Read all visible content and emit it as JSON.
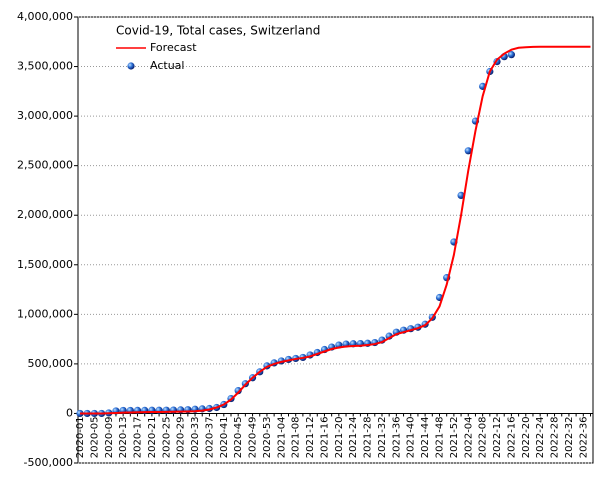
{
  "chart_data": {
    "type": "line",
    "title": "Covid-19, Total cases, Switzerland",
    "categories": [
      "2020-01",
      null,
      "2020-05",
      null,
      "2020-09",
      null,
      "2020-13",
      null,
      "2020-17",
      null,
      "2020-21",
      null,
      "2020-25",
      null,
      "2020-29",
      null,
      "2020-33",
      null,
      "2020-37",
      null,
      "2020-41",
      null,
      "2020-45",
      null,
      "2020-49",
      null,
      "2020-53",
      null,
      "2021-04",
      null,
      "2021-08",
      null,
      "2021-12",
      null,
      "2021-16",
      null,
      "2021-20",
      null,
      "2021-24",
      null,
      "2021-28",
      null,
      "2021-32",
      null,
      "2021-36",
      null,
      "2021-40",
      null,
      "2021-44",
      null,
      "2021-48",
      null,
      "2021-52",
      null,
      "2022-04",
      null,
      "2022-08",
      null,
      "2022-12",
      null,
      "2022-16",
      null,
      "2022-20",
      null,
      "2022-24",
      null,
      "2022-28",
      null,
      "2022-32",
      null,
      "2022-36",
      null
    ],
    "series": [
      {
        "name": "Forecast",
        "style": "line",
        "color": "#ff0000",
        "values": [
          0,
          0,
          0,
          0,
          2000,
          5000,
          8000,
          10000,
          12000,
          13000,
          14000,
          15000,
          16000,
          17000,
          18000,
          20000,
          22000,
          28000,
          40000,
          60000,
          90000,
          140000,
          210000,
          290000,
          360000,
          420000,
          470000,
          500000,
          520000,
          535000,
          550000,
          560000,
          575000,
          600000,
          625000,
          650000,
          665000,
          675000,
          680000,
          683000,
          690000,
          700000,
          720000,
          760000,
          800000,
          820000,
          840000,
          860000,
          890000,
          960000,
          1080000,
          1300000,
          1600000,
          2000000,
          2450000,
          2850000,
          3200000,
          3450000,
          3570000,
          3630000,
          3670000,
          3690000,
          3695000,
          3698000,
          3700000,
          3700000,
          3700000,
          3700000,
          3700000,
          3700000,
          3700000,
          3700000
        ]
      },
      {
        "name": "Actual",
        "style": "points",
        "color": "#1f5fd0",
        "values": [
          0,
          0,
          0,
          0,
          5000,
          25000,
          30000,
          30000,
          31000,
          31000,
          32000,
          32000,
          33000,
          34000,
          36000,
          38000,
          42000,
          46000,
          50000,
          60000,
          90000,
          150000,
          230000,
          300000,
          360000,
          420000,
          480000,
          510000,
          530000,
          545000,
          555000,
          565000,
          590000,
          615000,
          645000,
          670000,
          690000,
          700000,
          703000,
          705000,
          708000,
          715000,
          740000,
          780000,
          820000,
          840000,
          855000,
          870000,
          900000,
          970000,
          1170000,
          1370000,
          1730000,
          2200000,
          2650000,
          2950000,
          3300000,
          3450000,
          3550000,
          3600000,
          3620000,
          null,
          null,
          null,
          null,
          null,
          null,
          null,
          null,
          null,
          null,
          null
        ]
      }
    ],
    "ylim": [
      -500000,
      4000000
    ],
    "yticks": [
      {
        "value": -500000,
        "label": "-500,000"
      },
      0,
      {
        "value": 500000,
        "label": "500,000"
      },
      {
        "value": 1000000,
        "label": "1,000,000"
      },
      {
        "value": 1500000,
        "label": "1,500,000"
      },
      {
        "value": 2000000,
        "label": "2,000,000"
      },
      {
        "value": 2500000,
        "label": "2,500,000"
      },
      {
        "value": 3000000,
        "label": "3,000,000"
      },
      {
        "value": 3500000,
        "label": "3,500,000"
      },
      {
        "value": 4000000,
        "label": "4,000,000"
      }
    ],
    "grid": true
  }
}
